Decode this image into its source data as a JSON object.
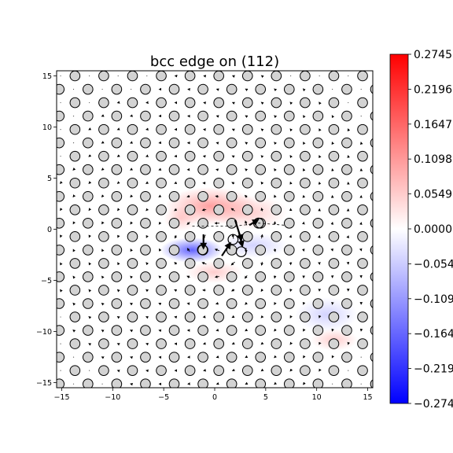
{
  "chart_data": {
    "type": "scatter",
    "title": "bcc edge on (112)",
    "xlabel": "",
    "ylabel": "",
    "xlim": [
      -15.5,
      15.5
    ],
    "ylim": [
      -15.5,
      15.5
    ],
    "xticks": [
      -15,
      -10,
      -5,
      0,
      5,
      10,
      15
    ],
    "yticks": [
      -15,
      -10,
      -5,
      0,
      5,
      10,
      15
    ],
    "xtick_labels": [
      "−15",
      "−10",
      "−5",
      "0",
      "5",
      "10",
      "15"
    ],
    "ytick_labels": [
      "−15",
      "−10",
      "−5",
      "0",
      "5",
      "10",
      "15"
    ],
    "grid": false,
    "lattice": {
      "row_spacing": 1.31,
      "row_shift_x": 1.27,
      "col_spacing": 2.82,
      "origin_x": -13.7,
      "origin_y": 15.0
    },
    "core": {
      "x": 1.0,
      "y": -1.2
    },
    "highlighted_atoms": [
      {
        "x": -1.2,
        "y": -2.0
      },
      {
        "x": 1.8,
        "y": -1.0
      },
      {
        "x": 2.6,
        "y": -2.2
      },
      {
        "x": 4.3,
        "y": 0.6
      }
    ],
    "large_arrows": [
      {
        "x": -1.1,
        "y": -0.5,
        "dx": 0.0,
        "dy": -1.3
      },
      {
        "x": 0.7,
        "y": -2.6,
        "dx": 0.8,
        "dy": 1.2
      },
      {
        "x": 2.0,
        "y": 0.9,
        "dx": 0.6,
        "dy": -1.9
      },
      {
        "x": 2.4,
        "y": -0.4,
        "dx": 0.3,
        "dy": -1.2
      },
      {
        "x": 3.4,
        "y": 0.4,
        "dx": 0.8,
        "dy": 0.5
      }
    ],
    "colorbar": {
      "cmap": "bwr",
      "range": [
        -0.2745,
        0.2745
      ],
      "ticks": [
        0.2745,
        0.2196,
        0.1647,
        0.1098,
        0.0549,
        0.0,
        -0.0549,
        -0.1098,
        -0.1647,
        -0.2196,
        -0.2745
      ],
      "tick_labels": [
        "0.2745",
        "0.2196",
        "0.1647",
        "0.1098",
        "0.0549",
        "0.0000",
        "−0.0549",
        "−0.1098",
        "−0.1647",
        "−0.2196",
        "−0.2745"
      ]
    },
    "colors": {
      "positive": "#ff0000",
      "negative": "#0000ff",
      "atom_fill": "#d3d3d3",
      "atom_edge": "#000000"
    }
  }
}
